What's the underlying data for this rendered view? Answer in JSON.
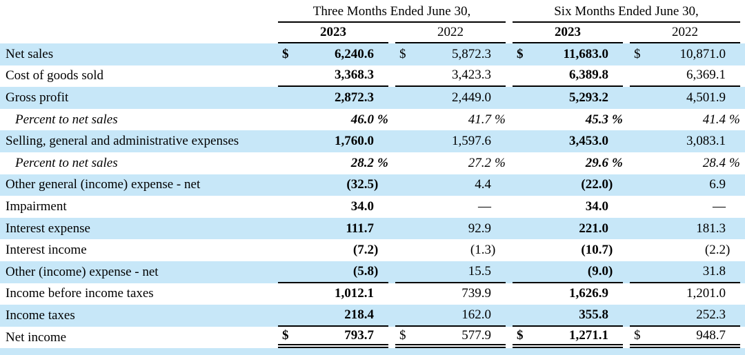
{
  "colors": {
    "stripe_blue": "#c7e7f8",
    "text": "#000000",
    "border": "#000000"
  },
  "header": {
    "col_groups": [
      {
        "label": "Three Months Ended June 30,"
      },
      {
        "label": "Six Months Ended June 30,"
      }
    ],
    "year_columns": [
      "2023",
      "2022",
      "2023",
      "2022"
    ]
  },
  "table": {
    "currency_symbol": "$",
    "rows": [
      {
        "label": "Net sales",
        "style": "normal",
        "dollar": true,
        "stripe": true,
        "border_bottom": "none",
        "values": [
          "6,240.6",
          "5,872.3",
          "11,683.0",
          "10,871.0"
        ]
      },
      {
        "label": "Cost of goods sold",
        "style": "normal",
        "dollar": false,
        "stripe": false,
        "border_bottom": "single",
        "values": [
          "3,368.3",
          "3,423.3",
          "6,389.8",
          "6,369.1"
        ]
      },
      {
        "label": "Gross profit",
        "style": "normal",
        "dollar": false,
        "stripe": true,
        "border_bottom": "none",
        "values": [
          "2,872.3",
          "2,449.0",
          "5,293.2",
          "4,501.9"
        ]
      },
      {
        "label": "Percent to net sales",
        "style": "percent",
        "dollar": false,
        "stripe": false,
        "border_bottom": "none",
        "values": [
          "46.0 %",
          "41.7 %",
          "45.3 %",
          "41.4 %"
        ]
      },
      {
        "label": "Selling, general and administrative expenses",
        "style": "normal",
        "dollar": false,
        "stripe": true,
        "border_bottom": "none",
        "values": [
          "1,760.0",
          "1,597.6",
          "3,453.0",
          "3,083.1"
        ]
      },
      {
        "label": "Percent to net sales",
        "style": "percent",
        "dollar": false,
        "stripe": false,
        "border_bottom": "none",
        "values": [
          "28.2 %",
          "27.2 %",
          "29.6 %",
          "28.4 %"
        ]
      },
      {
        "label": "Other general (income) expense - net",
        "style": "normal",
        "dollar": false,
        "stripe": true,
        "border_bottom": "none",
        "values": [
          "(32.5)",
          "4.4",
          "(22.0)",
          "6.9"
        ]
      },
      {
        "label": "Impairment",
        "style": "normal",
        "dollar": false,
        "stripe": false,
        "border_bottom": "none",
        "values": [
          "34.0",
          "—",
          "34.0",
          "—"
        ]
      },
      {
        "label": "Interest expense",
        "style": "normal",
        "dollar": false,
        "stripe": true,
        "border_bottom": "none",
        "values": [
          "111.7",
          "92.9",
          "221.0",
          "181.3"
        ]
      },
      {
        "label": "Interest income",
        "style": "normal",
        "dollar": false,
        "stripe": false,
        "border_bottom": "none",
        "values": [
          "(7.2)",
          "(1.3)",
          "(10.7)",
          "(2.2)"
        ]
      },
      {
        "label": "Other (income) expense - net",
        "style": "normal",
        "dollar": false,
        "stripe": true,
        "border_bottom": "single",
        "values": [
          "(5.8)",
          "15.5",
          "(9.0)",
          "31.8"
        ]
      },
      {
        "label": "Income before income taxes",
        "style": "normal",
        "dollar": false,
        "stripe": false,
        "border_bottom": "none",
        "values": [
          "1,012.1",
          "739.9",
          "1,626.9",
          "1,201.0"
        ]
      },
      {
        "label": "Income taxes",
        "style": "normal",
        "dollar": false,
        "stripe": true,
        "border_bottom": "single",
        "values": [
          "218.4",
          "162.0",
          "355.8",
          "252.3"
        ]
      },
      {
        "label": "Net income",
        "style": "normal",
        "dollar": true,
        "stripe": false,
        "border_bottom": "double",
        "values": [
          "793.7",
          "577.9",
          "1,271.1",
          "948.7"
        ]
      }
    ]
  }
}
